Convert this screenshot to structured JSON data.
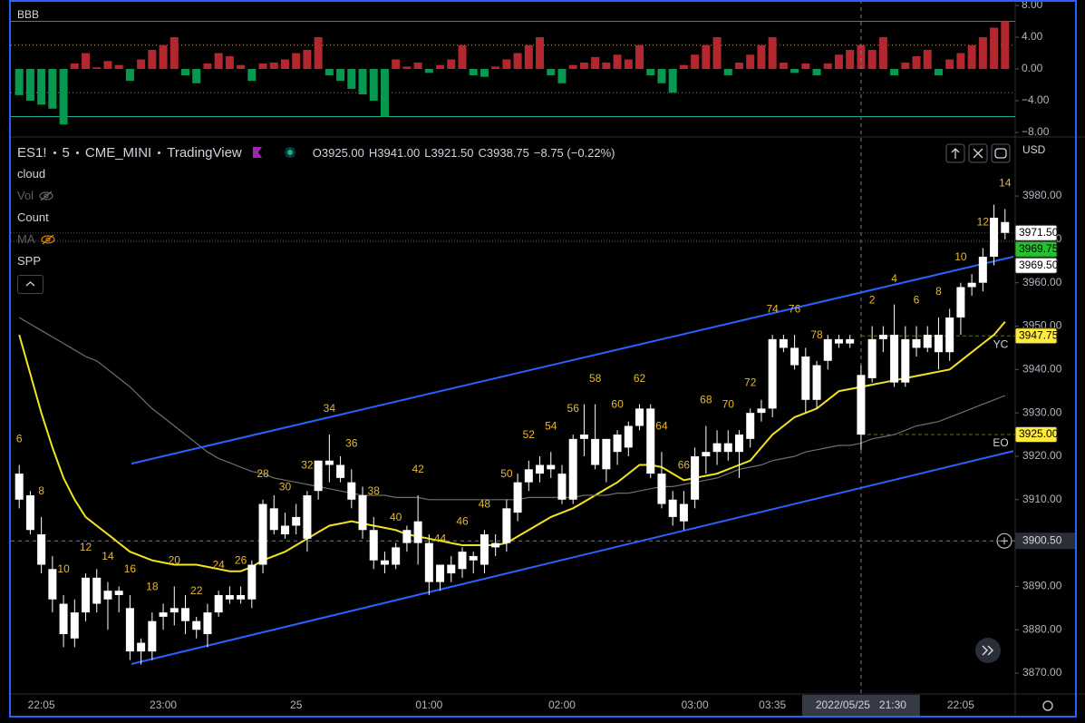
{
  "chart_data": [
    {
      "type": "bar",
      "title": "BBB",
      "values": [
        -3.3,
        -4,
        -4.5,
        -5,
        -7,
        0.7,
        2,
        0.2,
        1,
        0.5,
        -1.5,
        1.2,
        2.4,
        3,
        4,
        -0.8,
        -1.8,
        0.7,
        2,
        1.6,
        0.5,
        -1.5,
        0.7,
        0.8,
        1.2,
        2,
        2.4,
        4,
        -0.8,
        -1.5,
        -2.5,
        -3.2,
        -4,
        -6,
        1.2,
        0.3,
        0.8,
        -0.5,
        0.5,
        1.2,
        3,
        -0.8,
        -1,
        0.3,
        1.2,
        2,
        3,
        4,
        -0.8,
        -1.8,
        0.5,
        0.8,
        1.5,
        0.8,
        1.8,
        1.2,
        3,
        -0.8,
        -1.8,
        -3,
        0.5,
        1.8,
        3,
        4,
        -0.8,
        0.8,
        1.8,
        3,
        4,
        0.8,
        -0.5,
        0.7,
        -0.8,
        0.7,
        1.8,
        2.4,
        3,
        2.4,
        4,
        -0.8,
        0.8,
        1.6,
        2.4,
        -0.8,
        1.2,
        2,
        3,
        4,
        5.2,
        6
      ],
      "pos_color": "#b2282e",
      "neg_color": "#089950",
      "levels": [
        {
          "value": 6,
          "color": "#f23645",
          "style": "solid"
        },
        {
          "value": 3,
          "color": "#ff9800",
          "style": "dotted"
        },
        {
          "value": -3,
          "color": "#787b86",
          "style": "dotted"
        },
        {
          "value": -6,
          "color": "#22ab94",
          "style": "solid"
        }
      ],
      "ylim": [
        -8.46,
        8.69
      ],
      "yticks": [
        {
          "value": 8,
          "label": "8.00"
        },
        {
          "value": 4,
          "label": "4.00"
        },
        {
          "value": 0,
          "label": "0.00"
        },
        {
          "value": -4,
          "label": "−4.00"
        },
        {
          "value": -8,
          "label": "−8.00"
        }
      ]
    },
    {
      "type": "candlestick",
      "symbol": "ES1!",
      "interval": "5",
      "exchange": "CME_MINI",
      "source": "TradingView",
      "ohlc": [
        "O3925.00",
        "H3941.00",
        "L3921.50",
        "C3938.75"
      ],
      "change": "−8.75 (−0.22%)",
      "indicators": [
        "cloud",
        "Vol",
        "Count",
        "MA",
        "SPP"
      ],
      "currency": "USD",
      "categories": [
        null,
        null,
        "22:05",
        null,
        null,
        null,
        null,
        null,
        null,
        null,
        null,
        null,
        null,
        "23:00",
        null,
        null,
        null,
        null,
        null,
        null,
        null,
        null,
        null,
        null,
        null,
        "25",
        null,
        null,
        null,
        null,
        null,
        null,
        null,
        null,
        null,
        null,
        null,
        "01:00",
        null,
        null,
        null,
        null,
        null,
        null,
        null,
        null,
        null,
        null,
        null,
        "02:00",
        null,
        null,
        null,
        null,
        null,
        null,
        null,
        null,
        null,
        null,
        null,
        "03:00",
        null,
        null,
        null,
        null,
        null,
        null,
        "03:35",
        null,
        null,
        null,
        null,
        null,
        null,
        null,
        null,
        null,
        null,
        null,
        null,
        null,
        null,
        null,
        null,
        "22:05",
        null,
        null,
        null,
        null
      ],
      "open": [
        3916,
        3911,
        3902,
        3894,
        3886,
        3878,
        3884,
        3892,
        3887,
        3888,
        3885,
        3875,
        3875,
        3883,
        3884,
        3885,
        3880,
        3879,
        3884,
        3888,
        3887,
        3887,
        3895,
        3908,
        3904,
        3904,
        3901,
        3912,
        3919,
        3918,
        3914,
        3911,
        3903,
        3896,
        3899,
        3900,
        3905,
        3900,
        3891,
        3893,
        3894,
        3897,
        3895,
        3900,
        3900,
        3907,
        3914,
        3916,
        3918,
        3916,
        3924,
        3924,
        3924,
        3917,
        3921,
        3922,
        3927,
        3931,
        3916,
        3910,
        3909,
        3910,
        3920,
        3921,
        3921,
        3925,
        3924,
        3931,
        3931,
        3947,
        3945,
        3943,
        3933,
        3942,
        3947,
        3946,
        3925,
        3938,
        3947,
        3937,
        3947,
        3945,
        3948,
        3944,
        3944,
        3952,
        3959,
        3960,
        3966,
        3974
      ],
      "high": [
        3918,
        3912,
        3906,
        3897,
        3888,
        3887,
        3893,
        3894,
        3891,
        3890,
        3888,
        3878,
        3884,
        3886,
        3890,
        3888,
        3883,
        3886,
        3889,
        3890,
        3890,
        3896,
        3910,
        3911,
        3907,
        3909,
        3912,
        3919,
        3925,
        3920,
        3917,
        3913,
        3906,
        3898,
        3900,
        3904,
        3911,
        3902,
        3895,
        3897,
        3899,
        3898,
        3903,
        3902,
        3910,
        3916,
        3919,
        3920,
        3921,
        3918,
        3925,
        3932,
        3932,
        3924,
        3926,
        3928,
        3932,
        3932,
        3921,
        3912,
        3912,
        3922,
        3927,
        3926,
        3926,
        3926,
        3931,
        3933,
        3948,
        3948,
        3948,
        3945,
        3942,
        3948,
        3948,
        3948,
        3941,
        3950,
        3950,
        3955,
        3950,
        3950,
        3950,
        3952,
        3954,
        3960,
        3962,
        3968,
        3978,
        3977
      ],
      "low": [
        3908,
        3902,
        3893,
        3884,
        3876,
        3876,
        3882,
        3884,
        3880,
        3884,
        3873,
        3872,
        3873,
        3880,
        3881,
        3879,
        3878,
        3876,
        3883,
        3886,
        3886,
        3885,
        3893,
        3902,
        3901,
        3902,
        3898,
        3910,
        3914,
        3914,
        3908,
        3901,
        3894,
        3893,
        3894,
        3898,
        3895,
        3888,
        3889,
        3891,
        3892,
        3893,
        3893,
        3897,
        3898,
        3905,
        3912,
        3914,
        3915,
        3909,
        3909,
        3920,
        3917,
        3914,
        3918,
        3920,
        3926,
        3915,
        3908,
        3904,
        3903,
        3908,
        3916,
        3918,
        3919,
        3915,
        3922,
        3928,
        3929,
        3944,
        3940,
        3930,
        3931,
        3940,
        3945,
        3945,
        3921.5,
        3937,
        3944,
        3936,
        3936,
        3943,
        3944,
        3940,
        3942,
        3948,
        3957,
        3958,
        3964,
        3970
      ],
      "close": [
        3910,
        3903,
        3895,
        3887,
        3879,
        3884,
        3892,
        3886,
        3889,
        3889,
        3875,
        3877,
        3882,
        3884,
        3885,
        3882,
        3882,
        3884,
        3888,
        3887,
        3888,
        3895,
        3909,
        3903,
        3902,
        3906,
        3911,
        3919,
        3918,
        3915,
        3910,
        3903,
        3896,
        3895,
        3895,
        3903,
        3900,
        3891,
        3895,
        3895,
        3898,
        3896,
        3902,
        3899,
        3908,
        3914,
        3917,
        3918,
        3917,
        3910,
        3910,
        3925,
        3918,
        3924,
        3925,
        3927,
        3931,
        3916,
        3909,
        3906,
        3905,
        3920,
        3921,
        3923,
        3923,
        3921,
        3930,
        3930,
        3947,
        3945,
        3941,
        3933,
        3941,
        3947,
        3946,
        3947,
        3938.75,
        3947,
        3948,
        3948,
        3937,
        3947,
        3945,
        3948,
        3952,
        3959,
        3960,
        3966,
        3975,
        3971.5
      ],
      "color": "#ffffff",
      "series": [
        {
          "color": "#f2e41e",
          "values": [
            3948,
            3939,
            3930,
            3922,
            3915,
            3910,
            3906,
            3904,
            3902,
            3900,
            3898,
            3897,
            3896,
            3895.5,
            3895,
            3895,
            3895,
            3894.5,
            3894,
            3893.5,
            3893.5,
            3894.5,
            3896,
            3897,
            3898,
            3899.5,
            3901,
            3902.5,
            3904,
            3904.5,
            3905,
            3904.5,
            3904,
            3903.5,
            3903,
            3902,
            3901.5,
            3901,
            3900.5,
            3900,
            3899.5,
            3899.5,
            3899.5,
            3899.5,
            3900,
            3901.5,
            3903,
            3904.5,
            3906,
            3907,
            3908,
            3909.5,
            3911,
            3912.5,
            3914,
            3916,
            3918,
            3918,
            3917.5,
            3916,
            3914.5,
            3915,
            3915.5,
            3916,
            3917,
            3918,
            3919,
            3922,
            3925,
            3927,
            3929,
            3930,
            3931,
            3933,
            3935,
            3935.5,
            3936,
            3936.5,
            3937,
            3937.5,
            3938,
            3938.5,
            3939,
            3939.5,
            3940,
            3942,
            3944,
            3946,
            3948,
            3951
          ]
        },
        {
          "color": "#6e6e6e",
          "values": [
            3952,
            3950.5,
            3949,
            3947.5,
            3946,
            3944.5,
            3943,
            3942,
            3940,
            3938,
            3936,
            3933.5,
            3931,
            3929,
            3927,
            3925,
            3923,
            3921,
            3919.5,
            3918.5,
            3917.5,
            3916.5,
            3916,
            3915,
            3914.5,
            3914,
            3913.5,
            3913,
            3912.5,
            3912,
            3911.5,
            3911,
            3911,
            3911,
            3910.5,
            3910.5,
            3910.5,
            3910,
            3910,
            3910,
            3910,
            3910,
            3910,
            3910,
            3910,
            3910,
            3910.5,
            3910.5,
            3910.5,
            3910.5,
            3910.5,
            3911,
            3911,
            3911,
            3911.5,
            3911.5,
            3912,
            3912.5,
            3913,
            3913,
            3913.5,
            3914,
            3914.5,
            3915,
            3916,
            3917,
            3917.5,
            3918,
            3919,
            3919.5,
            3920,
            3921,
            3921.5,
            3922,
            3922.5,
            3922.5,
            3923,
            3924,
            3924.5,
            3925,
            3926,
            3927,
            3927.5,
            3928,
            3929,
            3930,
            3931,
            3932,
            3933,
            3934
          ]
        }
      ],
      "count_labels": [
        6,
        null,
        8,
        null,
        10,
        null,
        12,
        null,
        14,
        null,
        16,
        null,
        18,
        null,
        20,
        null,
        22,
        null,
        24,
        null,
        26,
        null,
        28,
        null,
        30,
        null,
        32,
        null,
        34,
        null,
        36,
        null,
        38,
        null,
        40,
        null,
        42,
        null,
        44,
        null,
        46,
        null,
        48,
        null,
        50,
        null,
        52,
        null,
        54,
        null,
        56,
        null,
        58,
        null,
        60,
        null,
        62,
        null,
        64,
        null,
        66,
        null,
        68,
        null,
        70,
        null,
        72,
        null,
        74,
        null,
        76,
        null,
        78,
        null,
        null,
        null,
        null,
        2,
        null,
        4,
        null,
        6,
        null,
        8,
        null,
        10,
        null,
        12,
        null,
        14
      ],
      "count_color": "#e9b82c",
      "trend_lines": [
        {
          "color": "#2962ff",
          "values": [
            3918.3,
            3966
          ]
        },
        {
          "color": "#2962ff",
          "values": [
            3872.1,
            3921.2
          ]
        }
      ],
      "price_labels": [
        {
          "value": 3971.5,
          "label": "3971.50",
          "color": "#ffffff",
          "text_color": "#000000"
        },
        {
          "value": 3969.75,
          "label": "3969.75",
          "color": "#22c32c",
          "text_color": "#000000"
        },
        {
          "value": 3969.5,
          "label": "3969.50",
          "color": "#ffffff",
          "text_color": "#000000"
        },
        {
          "value": 3947.75,
          "label": "3947.75",
          "color": "#ffeb3b",
          "text_color": "#000000",
          "tag": "YC"
        },
        {
          "value": 3925,
          "label": "3925.00",
          "color": "#ffeb3b",
          "text_color": "#000000",
          "tag": "EO"
        }
      ],
      "crosshair": {
        "x_label": "2022/05/25   21:30",
        "y": {
          "value": 3900.5,
          "label": "3900.50"
        }
      },
      "grid": false,
      "ylim": [
        3865.2,
        3993.4
      ],
      "yticks": [
        {
          "value": 3870,
          "label": "3870.00"
        },
        {
          "value": 3880,
          "label": "3880.00"
        },
        {
          "value": 3890,
          "label": "3890.00"
        },
        {
          "value": 3900,
          "label": "3900.00"
        },
        {
          "value": 3910,
          "label": "3910.00"
        },
        {
          "value": 3920,
          "label": "3920.00"
        },
        {
          "value": 3930,
          "label": "3930.00"
        },
        {
          "value": 3940,
          "label": "3940.00"
        },
        {
          "value": 3950,
          "label": "3950.00"
        },
        {
          "value": 3960,
          "label": "3960.00"
        },
        {
          "value": 3970,
          "label": "3970.00"
        },
        {
          "value": 3980,
          "label": "3980.00"
        }
      ]
    }
  ]
}
